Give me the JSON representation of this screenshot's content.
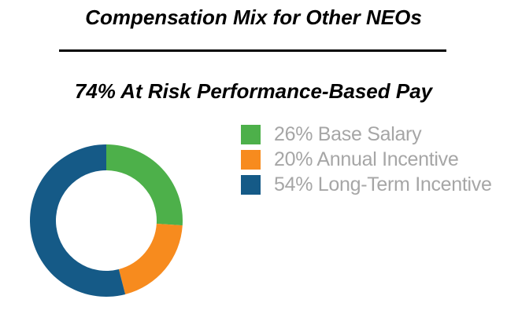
{
  "header": {
    "title": "Compensation Mix for Other NEOs",
    "subtitle": "74% At Risk Performance-Based Pay"
  },
  "divider": {
    "color": "#000000"
  },
  "legend": {
    "position": "right",
    "text_color": "#A6A6A6",
    "items": [
      {
        "label": "26% Base Salary",
        "color": "#4DB04A"
      },
      {
        "label": "20% Annual Incentive",
        "color": "#F78B1E"
      },
      {
        "label": "54% Long-Term Incentive",
        "color": "#155A87"
      }
    ]
  },
  "chart_data": {
    "type": "pie",
    "subtype": "donut",
    "title": "Compensation Mix for Other NEOs",
    "annotation": "74% At Risk Performance-Based Pay",
    "categories": [
      "Base Salary",
      "Annual Incentive",
      "Long-Term Incentive"
    ],
    "values": [
      26,
      20,
      54
    ],
    "unit": "percent",
    "colors": [
      "#4DB04A",
      "#F78B1E",
      "#155A87"
    ],
    "start_angle_deg": -90,
    "direction": "clockwise",
    "inner_radius_ratio": 0.67,
    "hole_color": "#ffffff",
    "legend_position": "right",
    "grid": false
  }
}
